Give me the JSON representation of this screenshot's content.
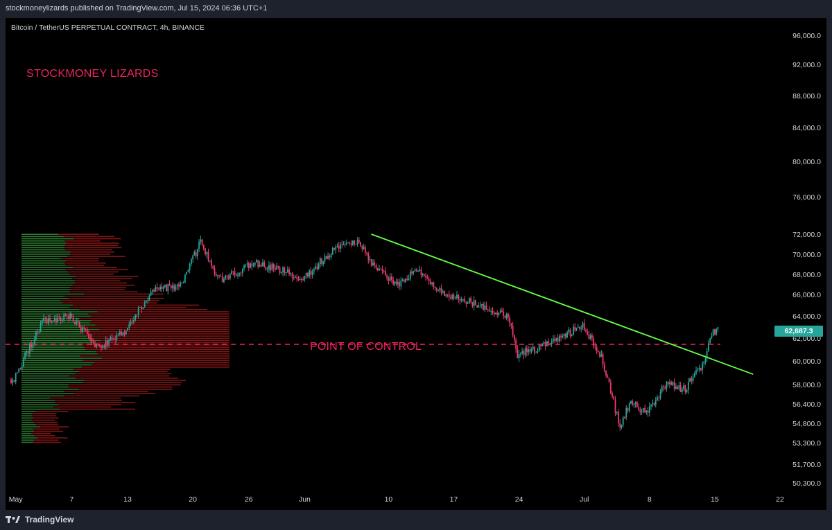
{
  "header": {
    "published": "stockmoneylizards published on TradingView.com, Jul 15, 2024 06:36 UTC+1"
  },
  "symbol": "Bitcoin / TetherUS PERPETUAL CONTRACT, 4h, BINANCE",
  "annotations": {
    "brand_text": "STOCKMONEY LIZARDS",
    "poc_text": "POINT OF CONTROL"
  },
  "footer": {
    "brand": "TradingView",
    "logo_icon": "tradingview-logo-icon"
  },
  "colors": {
    "up": "#26a69a",
    "down": "#ef3b6b",
    "trendline": "#66ff44",
    "poc": "#f0245f",
    "profile_up": "#2e7d32",
    "profile_down": "#8b1515",
    "last_price_bg": "#26a69a"
  },
  "chart_data": {
    "type": "candlestick",
    "title": "Bitcoin / TetherUS PERPETUAL CONTRACT, 4h, BINANCE",
    "timeframe": "4h",
    "price_scale": "log",
    "ylim": [
      49800,
      98500
    ],
    "y_ticks": [
      "96,000.0",
      "92,000.0",
      "88,000.0",
      "84,000.0",
      "80,000.0",
      "76,000.0",
      "72,000.0",
      "70,000.0",
      "68,000.0",
      "66,000.0",
      "64,000.0",
      "62,000.0",
      "60,000.0",
      "58,000.0",
      "56,400.0",
      "54,800.0",
      "53,300.0",
      "51,700.0",
      "50,300.0"
    ],
    "x_ticks": [
      "May",
      "7",
      "13",
      "20",
      "26",
      "Jun",
      "10",
      "17",
      "24",
      "Jul",
      "8",
      "15",
      "22"
    ],
    "last_price": 62687.3,
    "last_price_label": "62,687.3",
    "approx_path": [
      {
        "date": "2024-05-01",
        "price": 58500
      },
      {
        "date": "2024-05-04",
        "price": 63500
      },
      {
        "date": "2024-05-07",
        "price": 64000
      },
      {
        "date": "2024-05-10",
        "price": 61200
      },
      {
        "date": "2024-05-13",
        "price": 62800
      },
      {
        "date": "2024-05-16",
        "price": 66500
      },
      {
        "date": "2024-05-19",
        "price": 67000
      },
      {
        "date": "2024-05-21",
        "price": 71300
      },
      {
        "date": "2024-05-23",
        "price": 67500
      },
      {
        "date": "2024-05-27",
        "price": 69200
      },
      {
        "date": "2024-06-01",
        "price": 67700
      },
      {
        "date": "2024-06-05",
        "price": 71000
      },
      {
        "date": "2024-06-07",
        "price": 71600
      },
      {
        "date": "2024-06-08",
        "price": 69500
      },
      {
        "date": "2024-06-11",
        "price": 67000
      },
      {
        "date": "2024-06-13",
        "price": 68500
      },
      {
        "date": "2024-06-16",
        "price": 66300
      },
      {
        "date": "2024-06-20",
        "price": 65000
      },
      {
        "date": "2024-06-23",
        "price": 64000
      },
      {
        "date": "2024-06-24",
        "price": 60500
      },
      {
        "date": "2024-06-27",
        "price": 61500
      },
      {
        "date": "2024-06-30",
        "price": 62700
      },
      {
        "date": "2024-07-01",
        "price": 63200
      },
      {
        "date": "2024-07-03",
        "price": 60500
      },
      {
        "date": "2024-07-05",
        "price": 54500
      },
      {
        "date": "2024-07-06",
        "price": 56500
      },
      {
        "date": "2024-07-08",
        "price": 55800
      },
      {
        "date": "2024-07-10",
        "price": 58200
      },
      {
        "date": "2024-07-12",
        "price": 57600
      },
      {
        "date": "2024-07-14",
        "price": 60000
      },
      {
        "date": "2024-07-15",
        "price": 62687.3
      }
    ],
    "trendline": {
      "from": {
        "date": "2024-06-08",
        "price": 72100
      },
      "to": {
        "date": "2024-07-18",
        "price": 58900
      }
    },
    "poc_level": 61500,
    "volume_profile": {
      "range": [
        53300,
        72200
      ],
      "peak_price": 61500
    }
  }
}
